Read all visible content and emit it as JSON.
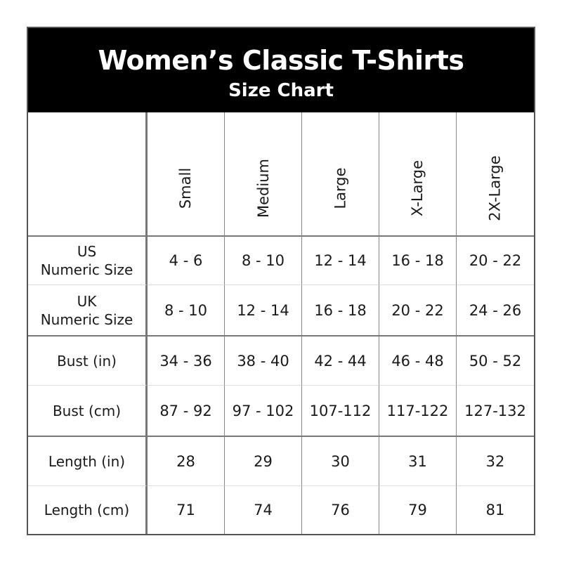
{
  "header": {
    "title": "Women’s Classic T-Shirts",
    "subtitle": "Size Chart"
  },
  "sizes": [
    "Small",
    "Medium",
    "Large",
    "X-Large",
    "2X-Large"
  ],
  "rows": [
    {
      "label_line1": "US",
      "label_line2": "Numeric Size",
      "values": [
        "4 - 6",
        "8 - 10",
        "12 - 14",
        "16 - 18",
        "20 - 22"
      ]
    },
    {
      "label_line1": "UK",
      "label_line2": "Numeric Size",
      "values": [
        "8 - 10",
        "12 - 14",
        "16 - 18",
        "20 - 22",
        "24 - 26"
      ]
    },
    {
      "label_line1": "Bust (in)",
      "label_line2": "",
      "values": [
        "34 - 36",
        "38 - 40",
        "42 - 44",
        "46 - 48",
        "50 - 52"
      ]
    },
    {
      "label_line1": "Bust (cm)",
      "label_line2": "",
      "values": [
        "87 - 92",
        "97 - 102",
        "107-112",
        "117-122",
        "127-132"
      ]
    },
    {
      "label_line1": "Length (in)",
      "label_line2": "",
      "values": [
        "28",
        "29",
        "30",
        "31",
        "32"
      ]
    },
    {
      "label_line1": "Length (cm)",
      "label_line2": "",
      "values": [
        "71",
        "74",
        "76",
        "79",
        "81"
      ]
    }
  ]
}
